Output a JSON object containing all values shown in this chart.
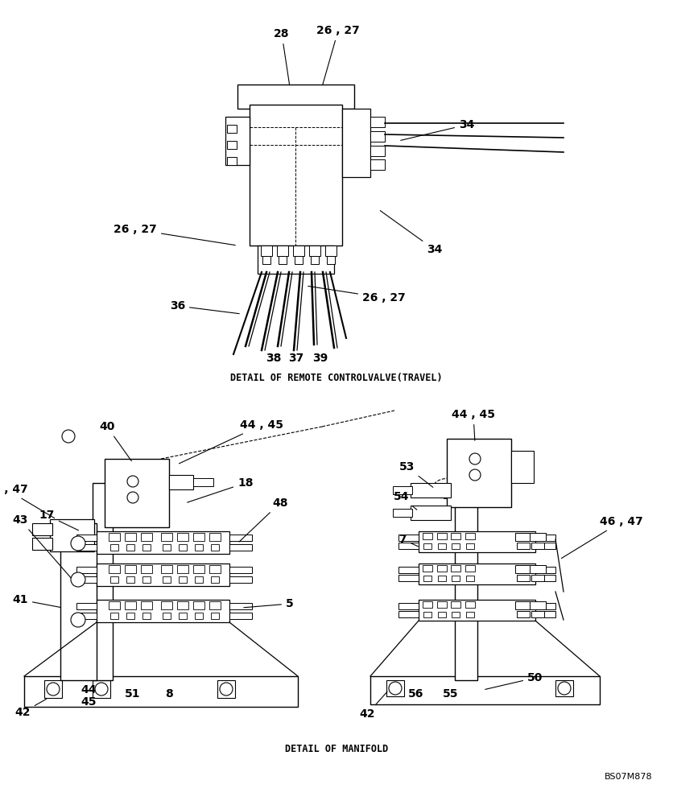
{
  "bg_color": "#ffffff",
  "title_top": "DETAIL OF REMOTE CONTROLVALVE(TRAVEL)",
  "title_bottom": "DETAIL OF MANIFOLD",
  "ref_code": "BS07M878",
  "fig_width": 8.36,
  "fig_height": 10.0,
  "dpi": 100,
  "lfs": 10,
  "cfs": 8.5,
  "rfs": 8
}
